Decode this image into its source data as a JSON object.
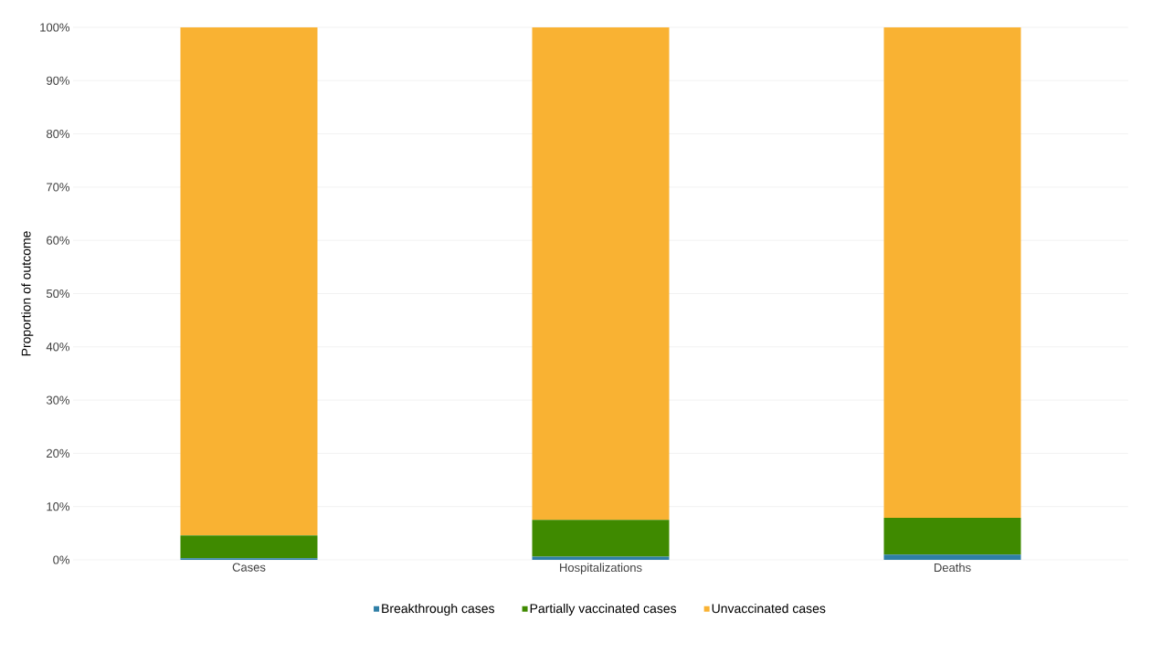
{
  "chart_data": {
    "type": "bar",
    "stacked": true,
    "ylabel": "Proportion of outcome",
    "categories": [
      "Cases",
      "Hospitalizations",
      "Deaths"
    ],
    "series": [
      {
        "name": "Breakthrough cases",
        "color": "#2f7fa6",
        "values": [
          0.3,
          0.6,
          1.0
        ]
      },
      {
        "name": "Partially vaccinated cases",
        "color": "#3f8a00",
        "values": [
          4.3,
          6.9,
          6.9
        ]
      },
      {
        "name": "Unvaccinated cases",
        "color": "#f9b233",
        "values": [
          95.4,
          92.5,
          92.1
        ]
      }
    ],
    "ylim": [
      0,
      100
    ],
    "yticks": [
      {
        "value": 0,
        "label": "0%"
      },
      {
        "value": 10,
        "label": "10%"
      },
      {
        "value": 20,
        "label": "20%"
      },
      {
        "value": 30,
        "label": "30%"
      },
      {
        "value": 40,
        "label": "40%"
      },
      {
        "value": 50,
        "label": "50%"
      },
      {
        "value": 60,
        "label": "60%"
      },
      {
        "value": 70,
        "label": "70%"
      },
      {
        "value": 80,
        "label": "80%"
      },
      {
        "value": 90,
        "label": "90%"
      },
      {
        "value": 100,
        "label": "100%"
      }
    ],
    "grid": "y",
    "legend": "bottom"
  }
}
